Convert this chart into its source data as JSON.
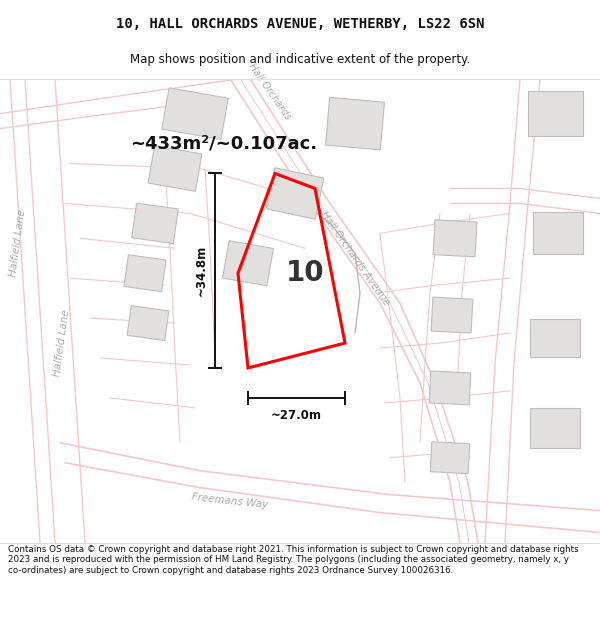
{
  "title_line1": "10, HALL ORCHARDS AVENUE, WETHERBY, LS22 6SN",
  "title_line2": "Map shows position and indicative extent of the property.",
  "area_text": "~433m²/~0.107ac.",
  "dim_height": "~34.8m",
  "dim_width": "~27.0m",
  "plot_number": "10",
  "footer_text": "Contains OS data © Crown copyright and database right 2021. This information is subject to Crown copyright and database rights 2023 and is reproduced with the permission of HM Land Registry. The polygons (including the associated geometry, namely x, y co-ordinates) are subject to Crown copyright and database rights 2023 Ordnance Survey 100026316.",
  "map_bg": "#f7f5f5",
  "road_color": "#f2c8c8",
  "road_line_color": "#e8a8a8",
  "building_fill": "#e2dfdf",
  "building_stroke": "#c8c4c4",
  "plot_color": "#ff0000",
  "dim_color": "#111111",
  "text_color": "#111111",
  "label_color": "#aaaaaa",
  "boundary_color": "#b0b0b0"
}
